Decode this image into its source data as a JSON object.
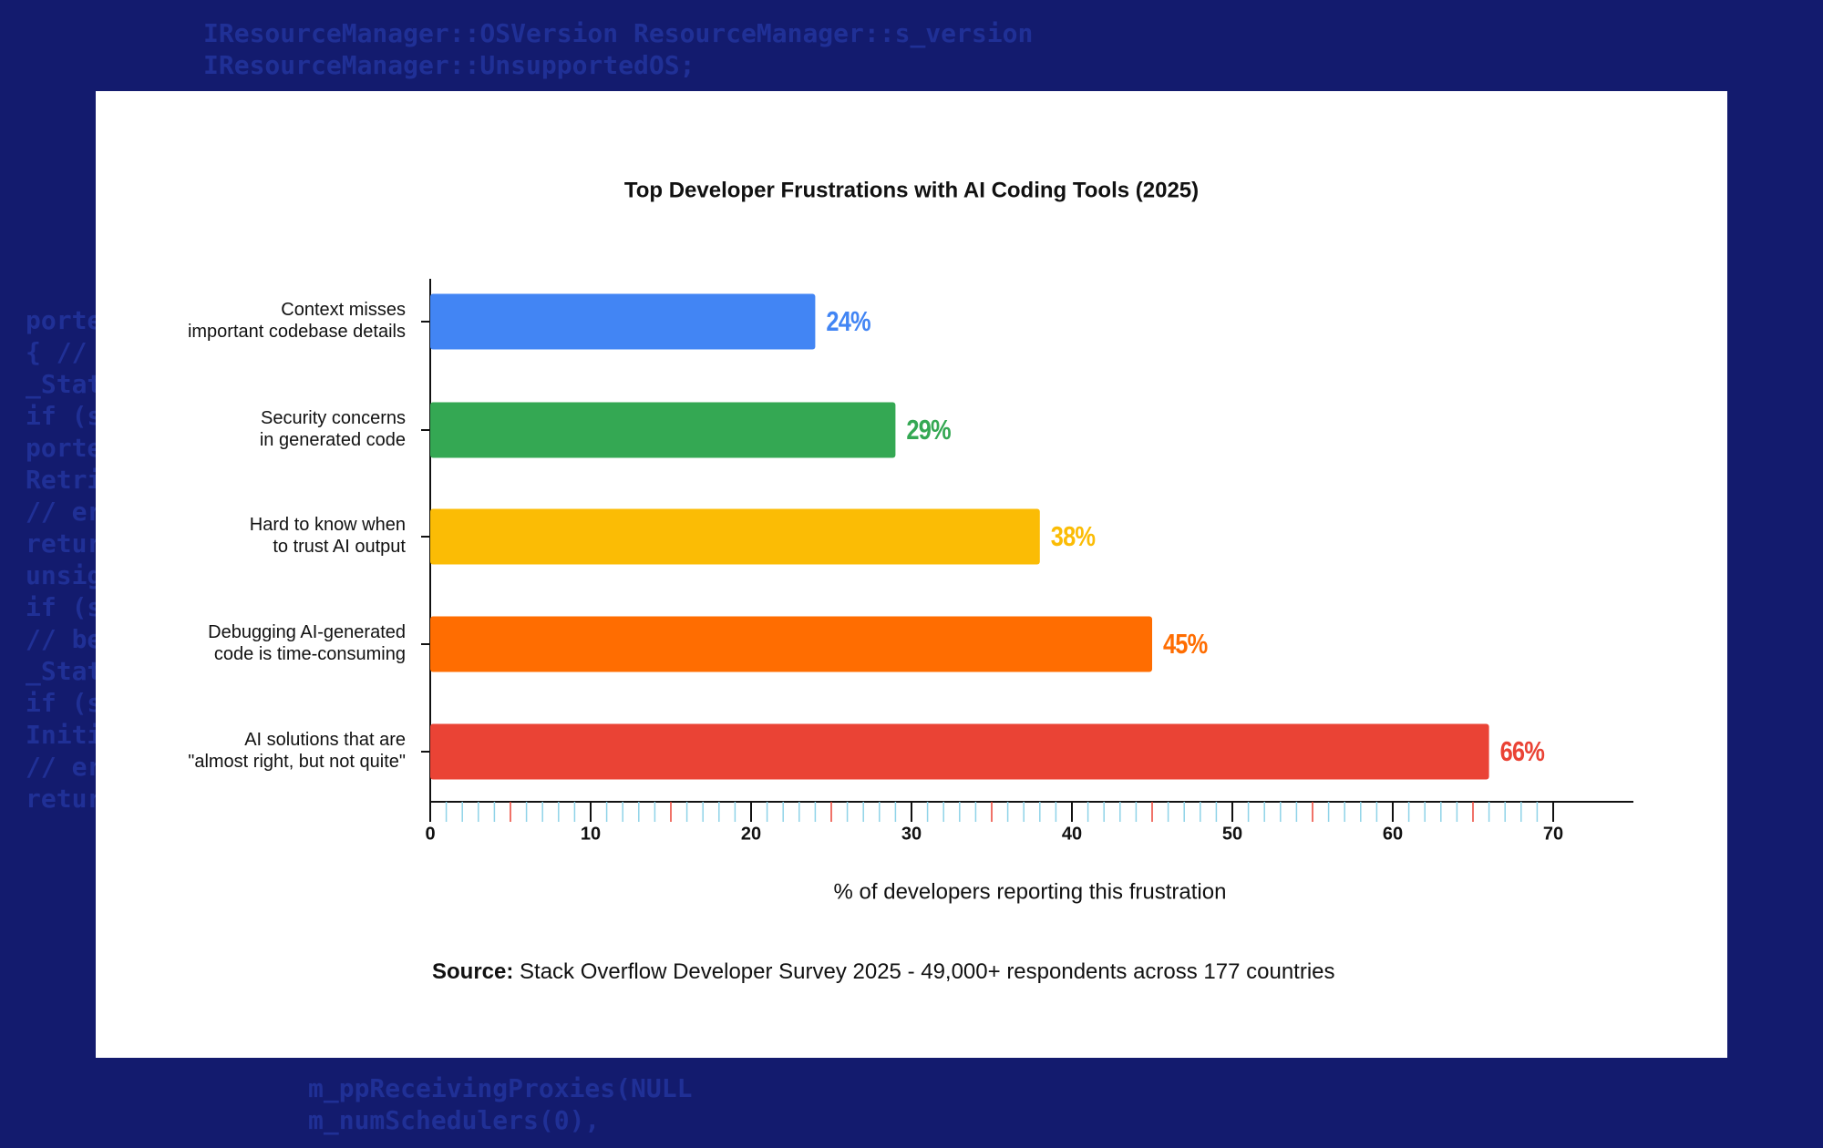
{
  "background_code": [
    "IResourceManager::OSVersion ResourceManager::s_version",
    "IResourceManager::UnsupportedOS;",
    "porte",
    "{ //",
    "_Stat",
    "if (s",
    "porte",
    "Retri",
    "// er",
    "retur",
    "unsig",
    "if (s",
    "// be",
    "_Stat",
    "if (s",
    "Initi",
    "// er",
    "retur",
    "m_ppReceivingProxies(NULL",
    "m_numSchedulers(0),"
  ],
  "chart_data": {
    "type": "hbar",
    "title": "Top Developer Frustrations with AI Coding Tools (2025)",
    "categories": [
      [
        "Context misses",
        "important codebase details"
      ],
      [
        "Security concerns",
        "in generated code"
      ],
      [
        "Hard to know when",
        "to trust AI output"
      ],
      [
        "Debugging AI-generated",
        "code is time-consuming"
      ],
      [
        "AI solutions that are",
        "\"almost right, but not quite\""
      ]
    ],
    "values": [
      24,
      29,
      38,
      45,
      66
    ],
    "value_labels": [
      "24%",
      "29%",
      "38%",
      "45%",
      "66%"
    ],
    "colors": [
      "#4285f4",
      "#34a853",
      "#fbbc05",
      "#ff6d01",
      "#ea4335"
    ],
    "xlim": [
      0,
      75
    ],
    "xticks": [
      0,
      10,
      20,
      30,
      40,
      50,
      60,
      70
    ],
    "xticks_minor": [
      1,
      2,
      3,
      4,
      5,
      6,
      7,
      8,
      9,
      11,
      12,
      13,
      14,
      15,
      16,
      17,
      18,
      19,
      21,
      22,
      23,
      24,
      25,
      26,
      27,
      28,
      29,
      31,
      32,
      33,
      34,
      35,
      36,
      37,
      38,
      39,
      41,
      42,
      43,
      44,
      45,
      46,
      47,
      48,
      49,
      51,
      52,
      53,
      54,
      55,
      56,
      57,
      58,
      59,
      61,
      62,
      63,
      64,
      65,
      66,
      67,
      68,
      69
    ],
    "xlabel": "% of developers reporting this frustration",
    "source_label": "Source:",
    "source_text": "Stack Overflow Developer Survey 2025 - 49,000+ respondents across 177 countries"
  }
}
